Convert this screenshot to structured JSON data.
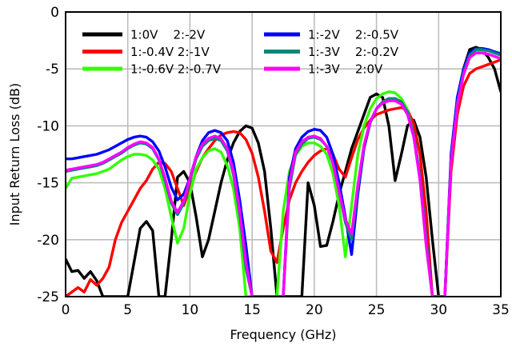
{
  "chart_data": {
    "type": "line",
    "title": "",
    "xlabel": "Frequency (GHz)",
    "ylabel": "Input Return Loss (dB)",
    "xlim": [
      0,
      35
    ],
    "ylim": [
      -25,
      0
    ],
    "x_ticks": [
      0,
      5,
      10,
      15,
      20,
      25,
      30,
      35
    ],
    "y_ticks": [
      0,
      -5,
      -10,
      -15,
      -20,
      -25
    ],
    "grid": true,
    "legend_placement": "top-left",
    "series": [
      {
        "name": "1:0V    2:-2V",
        "color": "#000000",
        "x": [
          0,
          0.5,
          1,
          1.5,
          2,
          2.5,
          3,
          3.5,
          4,
          4.5,
          5,
          5.5,
          6,
          6.5,
          7,
          7.5,
          8,
          8.5,
          9,
          9.5,
          10,
          10.5,
          11,
          11.5,
          12,
          12.5,
          13,
          13.5,
          14,
          14.5,
          15,
          15.5,
          16,
          16.5,
          17,
          17.5,
          18,
          18.5,
          19,
          19.5,
          20,
          20.5,
          21,
          21.5,
          22,
          22.5,
          23,
          23.5,
          24,
          24.5,
          25,
          25.5,
          26,
          26.5,
          27,
          27.5,
          28,
          28.5,
          29,
          29.5,
          30,
          30.5,
          31,
          31.5,
          32,
          32.5,
          33,
          33.5,
          34,
          34.5,
          35
        ],
        "y": [
          -21.7,
          -22.8,
          -22.7,
          -23.4,
          -22.8,
          -23.6,
          -25,
          -25,
          -25,
          -25,
          -25,
          -22,
          -19,
          -18.4,
          -19.2,
          -25,
          -25,
          -20,
          -14.5,
          -14,
          -15,
          -18,
          -21.5,
          -20,
          -17.5,
          -15,
          -13,
          -11.5,
          -10.5,
          -10,
          -10.2,
          -11.5,
          -14,
          -19,
          -25,
          -25,
          -25,
          -25,
          -25,
          -15,
          -17,
          -20.6,
          -20.5,
          -18.4,
          -16,
          -14,
          -12,
          -10.5,
          -9,
          -7.5,
          -7.2,
          -7.5,
          -10,
          -14.8,
          -12.5,
          -10,
          -9.5,
          -11,
          -14.5,
          -20,
          -25,
          -25,
          -13,
          -8,
          -5,
          -3.3,
          -3.1,
          -3.3,
          -4,
          -5,
          -7
        ]
      },
      {
        "name": "1:-0.4V 2:-1V",
        "color": "#ff0000",
        "x": [
          0,
          0.5,
          1,
          1.5,
          2,
          2.5,
          3,
          3.5,
          4,
          4.5,
          5,
          5.5,
          6,
          6.5,
          7,
          7.5,
          8,
          8.5,
          9,
          9.5,
          10,
          10.5,
          11,
          11.5,
          12,
          12.5,
          13,
          13.5,
          14,
          14.5,
          15,
          15.5,
          16,
          16.5,
          17,
          17.5,
          18,
          18.5,
          19,
          19.5,
          20,
          20.5,
          21,
          21.5,
          22,
          22.5,
          23,
          23.5,
          24,
          24.5,
          25,
          25.5,
          26,
          26.5,
          27,
          27.5,
          28,
          28.5,
          29,
          29.5,
          30,
          30.5,
          31,
          31.5,
          32,
          32.5,
          33,
          33.5,
          34,
          34.5,
          35
        ],
        "y": [
          -25,
          -24.6,
          -24.2,
          -24.6,
          -23.5,
          -24,
          -23.4,
          -22.4,
          -20,
          -18.5,
          -17.5,
          -16.5,
          -15.5,
          -14.8,
          -13.8,
          -13.2,
          -13.3,
          -14,
          -15.5,
          -17,
          -15.5,
          -14,
          -12.8,
          -12,
          -11.3,
          -10.8,
          -10.6,
          -10.5,
          -10.6,
          -11.2,
          -12.4,
          -14.5,
          -17.5,
          -21,
          -22,
          -19,
          -16.5,
          -15,
          -14,
          -13.2,
          -12.6,
          -12.2,
          -12,
          -12.5,
          -13.8,
          -14.5,
          -12.8,
          -11.2,
          -10.2,
          -9.5,
          -9,
          -8.8,
          -8.6,
          -8.5,
          -8.4,
          -8.6,
          -9.8,
          -12.5,
          -17.5,
          -25,
          -25,
          -25,
          -14,
          -9,
          -6.5,
          -5.4,
          -5,
          -4.8,
          -4.6,
          -4.4,
          -4.2
        ]
      },
      {
        "name": "1:-0.6V 2:-0.7V",
        "color": "#33ff00",
        "x": [
          0,
          0.5,
          1,
          1.5,
          2,
          2.5,
          3,
          3.5,
          4,
          4.5,
          5,
          5.5,
          6,
          6.5,
          7,
          7.5,
          8,
          8.5,
          9,
          9.5,
          10,
          10.5,
          11,
          11.5,
          12,
          12.5,
          13,
          13.5,
          14,
          14.5,
          15,
          15.5,
          16,
          16.5,
          17,
          17.5,
          18,
          18.5,
          19,
          19.5,
          20,
          20.5,
          21,
          21.5,
          22,
          22.5,
          23,
          23.5,
          24,
          24.5,
          25,
          25.5,
          26,
          26.5,
          27,
          27.5,
          28,
          28.5,
          29,
          29.5,
          30,
          30.5,
          31,
          31.5,
          32,
          32.5,
          33,
          33.5,
          34,
          34.5,
          35
        ],
        "y": [
          -15.5,
          -14.6,
          -14.5,
          -14.4,
          -14.3,
          -14.2,
          -14,
          -13.8,
          -13.4,
          -13,
          -12.7,
          -12.5,
          -12.5,
          -12.6,
          -13,
          -13.8,
          -15.5,
          -18,
          -20.3,
          -19,
          -16,
          -13.8,
          -12.8,
          -12.2,
          -12,
          -12.3,
          -13.5,
          -15.5,
          -19,
          -25,
          -25,
          -25,
          -25,
          -25,
          -25,
          -17.5,
          -14,
          -12.6,
          -11.8,
          -11.5,
          -11.5,
          -11.8,
          -12.5,
          -14.2,
          -17,
          -21.5,
          -17,
          -12.5,
          -10,
          -8.5,
          -7.6,
          -7.2,
          -7,
          -7.1,
          -7.6,
          -8.6,
          -10.8,
          -14.5,
          -20.5,
          -25,
          -25,
          -25,
          -13,
          -8,
          -5.5,
          -4,
          -3.5,
          -3.4,
          -3.4,
          -3.5,
          -3.6
        ]
      },
      {
        "name": "1:-2V    2:-0.5V",
        "color": "#0000ff",
        "x": [
          0,
          0.5,
          1,
          1.5,
          2,
          2.5,
          3,
          3.5,
          4,
          4.5,
          5,
          5.5,
          6,
          6.5,
          7,
          7.5,
          8,
          8.5,
          9,
          9.5,
          10,
          10.5,
          11,
          11.5,
          12,
          12.5,
          13,
          13.5,
          14,
          14.5,
          15,
          15.5,
          16,
          16.5,
          17,
          17.5,
          18,
          18.5,
          19,
          19.5,
          20,
          20.5,
          21,
          21.5,
          22,
          22.5,
          23,
          23.5,
          24,
          24.5,
          25,
          25.5,
          26,
          26.5,
          27,
          27.5,
          28,
          28.5,
          29,
          29.5,
          30,
          30.5,
          31,
          31.5,
          32,
          32.5,
          33,
          33.5,
          34,
          34.5,
          35
        ],
        "y": [
          -12.9,
          -12.9,
          -12.8,
          -12.7,
          -12.6,
          -12.5,
          -12.3,
          -12.1,
          -11.8,
          -11.5,
          -11.2,
          -11,
          -10.9,
          -11,
          -11.4,
          -12.2,
          -13.6,
          -15.4,
          -16.5,
          -16,
          -14.6,
          -12.7,
          -11.3,
          -10.6,
          -10.4,
          -10.6,
          -11.3,
          -13.2,
          -16.5,
          -20.5,
          -25,
          -25,
          -25,
          -25,
          -25,
          -25,
          -14.5,
          -12,
          -11,
          -10.5,
          -10.3,
          -10.4,
          -11,
          -12.5,
          -15,
          -18,
          -21.3,
          -16,
          -12,
          -9.7,
          -8.5,
          -7.9,
          -7.6,
          -7.6,
          -7.9,
          -8.8,
          -10.8,
          -14.5,
          -20,
          -25,
          -25,
          -25,
          -12.5,
          -7.5,
          -5,
          -3.6,
          -3.2,
          -3.2,
          -3.3,
          -3.5,
          -3.7
        ]
      },
      {
        "name": "1:-3V    2:-0.2V",
        "color": "#00887a",
        "x": [
          0,
          0.5,
          1,
          1.5,
          2,
          2.5,
          3,
          3.5,
          4,
          4.5,
          5,
          5.5,
          6,
          6.5,
          7,
          7.5,
          8,
          8.5,
          9,
          9.5,
          10,
          10.5,
          11,
          11.5,
          12,
          12.5,
          13,
          13.5,
          14,
          14.5,
          15,
          15.5,
          16,
          16.5,
          17,
          17.5,
          18,
          18.5,
          19,
          19.5,
          20,
          20.5,
          21,
          21.5,
          22,
          22.5,
          23,
          23.5,
          24,
          24.5,
          25,
          25.5,
          26,
          26.5,
          27,
          27.5,
          28,
          28.5,
          29,
          29.5,
          30,
          30.5,
          31,
          31.5,
          32,
          32.5,
          33,
          33.5,
          34,
          34.5,
          35
        ],
        "y": [
          -14,
          -13.9,
          -13.8,
          -13.7,
          -13.6,
          -13.5,
          -13.3,
          -13,
          -12.7,
          -12.4,
          -12,
          -11.7,
          -11.5,
          -11.6,
          -12,
          -13,
          -14.8,
          -16.8,
          -17.8,
          -16.8,
          -14.8,
          -12.9,
          -11.8,
          -11.3,
          -11.1,
          -11.3,
          -12.2,
          -14.3,
          -17.8,
          -22.5,
          -25,
          -25,
          -25,
          -25,
          -25,
          -25,
          -15.5,
          -12.5,
          -11.6,
          -11.1,
          -11,
          -11.2,
          -11.8,
          -13.3,
          -15.8,
          -18.5,
          -20,
          -15.5,
          -11.8,
          -9.6,
          -8.5,
          -7.9,
          -7.6,
          -7.6,
          -7.9,
          -8.8,
          -10.8,
          -14.5,
          -20,
          -25,
          -25,
          -25,
          -13,
          -8,
          -5.3,
          -3.8,
          -3.3,
          -3.3,
          -3.4,
          -3.6,
          -3.8
        ]
      },
      {
        "name": "1:-3V    2:0V",
        "color": "#ff00ff",
        "x": [
          0,
          0.5,
          1,
          1.5,
          2,
          2.5,
          3,
          3.5,
          4,
          4.5,
          5,
          5.5,
          6,
          6.5,
          7,
          7.5,
          8,
          8.5,
          9,
          9.5,
          10,
          10.5,
          11,
          11.5,
          12,
          12.5,
          13,
          13.5,
          14,
          14.5,
          15,
          15.5,
          16,
          16.5,
          17,
          17.5,
          18,
          18.5,
          19,
          19.5,
          20,
          20.5,
          21,
          21.5,
          22,
          22.5,
          23,
          23.5,
          24,
          24.5,
          25,
          25.5,
          26,
          26.5,
          27,
          27.5,
          28,
          28.5,
          29,
          29.5,
          30,
          30.5,
          31,
          31.5,
          32,
          32.5,
          33,
          33.5,
          34,
          34.5,
          35
        ],
        "y": [
          -13.9,
          -13.8,
          -13.7,
          -13.6,
          -13.5,
          -13.4,
          -13.2,
          -12.9,
          -12.6,
          -12.3,
          -11.9,
          -11.6,
          -11.4,
          -11.5,
          -11.9,
          -12.9,
          -14.6,
          -16.6,
          -17.6,
          -16.6,
          -14.6,
          -12.7,
          -11.6,
          -11.1,
          -10.9,
          -11.1,
          -12,
          -14,
          -17.5,
          -22,
          -25,
          -25,
          -25,
          -25,
          -25,
          -25,
          -15,
          -12.3,
          -11.4,
          -11,
          -10.9,
          -11.1,
          -11.8,
          -13.3,
          -15.8,
          -18.2,
          -19.5,
          -15.2,
          -11.7,
          -9.6,
          -8.5,
          -8,
          -7.8,
          -7.8,
          -8.1,
          -9,
          -11,
          -14.8,
          -20.5,
          -25,
          -25,
          -25,
          -13.2,
          -8.2,
          -5.5,
          -4,
          -3.6,
          -3.6,
          -3.7,
          -3.9,
          -4.1
        ]
      }
    ]
  }
}
